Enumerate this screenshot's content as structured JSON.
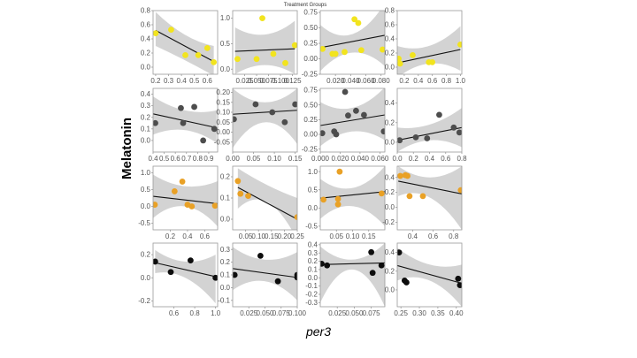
{
  "figure": {
    "title": "Treatment Groups",
    "ylabel": "Melatonin",
    "xlabel": "per3"
  },
  "colors": {
    "yellow": "#f2e41e",
    "dark_gray": "#4d4d4d",
    "orange": "#e9a126",
    "black": "#0d0d0d",
    "band": "#d3d3d3",
    "fit_line": "#111111"
  },
  "chart_data": [
    {
      "type": "scatter",
      "row": 1,
      "col": 1,
      "color": "yellow",
      "xlim": [
        0.18,
        0.68
      ],
      "ylim": [
        -0.1,
        0.8
      ],
      "xticks": [
        0.2,
        0.3,
        0.4,
        0.5,
        0.6
      ],
      "xtick_labels": [
        "0.2",
        "0.3",
        "0.4",
        "0.5",
        "0.6"
      ],
      "yticks": [
        0.0,
        0.2,
        0.4,
        0.6,
        0.8
      ],
      "ytick_labels": [
        "0.0",
        "0.2",
        "0.4",
        "0.6",
        "0.8"
      ],
      "x": [
        0.2,
        0.32,
        0.43,
        0.53,
        0.6,
        0.65
      ],
      "y": [
        0.48,
        0.53,
        0.17,
        0.17,
        0.27,
        0.07
      ],
      "fit": [
        [
          0.2,
          0.52
        ],
        [
          0.65,
          0.08
        ]
      ],
      "band_lower": [
        0.3,
        0.1,
        -0.12
      ],
      "band_upper": [
        0.78,
        0.46,
        0.3
      ]
    },
    {
      "type": "scatter",
      "row": 1,
      "col": 2,
      "color": "yellow",
      "xlim": [
        0.0,
        0.135
      ],
      "ylim": [
        -0.1,
        1.15
      ],
      "xticks": [
        0.025,
        0.05,
        0.075,
        0.1,
        0.125
      ],
      "xtick_labels": [
        "0.025",
        "0.050",
        "0.075",
        "0.100",
        "0.125"
      ],
      "yticks": [
        0.0,
        0.5,
        1.0
      ],
      "ytick_labels": [
        "0.0",
        "0.5",
        "1.0"
      ],
      "x": [
        0.01,
        0.05,
        0.062,
        0.085,
        0.11,
        0.13
      ],
      "y": [
        0.2,
        0.2,
        1.0,
        0.3,
        0.12,
        0.47
      ],
      "fit": [
        [
          0.005,
          0.35
        ],
        [
          0.13,
          0.4
        ]
      ],
      "band_lower": [
        -0.1,
        0.08,
        -0.1
      ],
      "band_upper": [
        0.82,
        0.68,
        0.95
      ]
    },
    {
      "type": "scatter",
      "row": 1,
      "col": 3,
      "color": "yellow",
      "xlim": [
        0.0,
        0.085
      ],
      "ylim": [
        -0.25,
        0.78
      ],
      "xticks": [
        0.02,
        0.04,
        0.06,
        0.08
      ],
      "xtick_labels": [
        "0.020",
        "0.040",
        "0.060",
        "0.080"
      ],
      "yticks": [
        -0.25,
        0.0,
        0.25,
        0.5,
        0.75
      ],
      "ytick_labels": [
        "-0.25",
        "0.00",
        "0.25",
        "0.50",
        "0.75"
      ],
      "x": [
        0.003,
        0.016,
        0.02,
        0.032,
        0.045,
        0.05,
        0.054,
        0.082
      ],
      "y": [
        0.16,
        0.08,
        0.08,
        0.11,
        0.64,
        0.58,
        0.14,
        0.15
      ],
      "fit": [
        [
          0.0,
          0.18
        ],
        [
          0.085,
          0.38
        ]
      ],
      "band_lower": [
        -0.2,
        0.1,
        -0.12
      ],
      "band_upper": [
        0.55,
        0.4,
        0.9
      ]
    },
    {
      "type": "scatter",
      "row": 1,
      "col": 4,
      "color": "yellow",
      "xlim": [
        0.1,
        1.02
      ],
      "ylim": [
        -0.1,
        0.8
      ],
      "xticks": [
        0.2,
        0.4,
        0.6,
        0.8,
        1.0
      ],
      "xtick_labels": [
        "0.2",
        "0.4",
        "0.6",
        "0.8",
        "1.0"
      ],
      "yticks": [
        0.0,
        0.2,
        0.4,
        0.6,
        0.8
      ],
      "ytick_labels": [
        "0.0",
        "0.2",
        "0.4",
        "0.6",
        "0.8"
      ],
      "x": [
        0.12,
        0.14,
        0.32,
        0.55,
        0.6,
        1.0
      ],
      "y": [
        0.12,
        0.05,
        0.17,
        0.07,
        0.07,
        0.32
      ],
      "fit": [
        [
          0.1,
          0.06
        ],
        [
          1.0,
          0.25
        ]
      ],
      "band_lower": [
        -0.15,
        0.05,
        -0.05
      ],
      "band_upper": [
        0.3,
        0.3,
        0.58
      ]
    },
    {
      "type": "scatter",
      "row": 2,
      "col": 1,
      "color": "dark_gray",
      "xlim": [
        0.4,
        0.98
      ],
      "ylim": [
        -0.1,
        0.45
      ],
      "xticks": [
        0.4,
        0.5,
        0.6,
        0.7,
        0.8,
        0.9
      ],
      "xtick_labels": [
        "0.4",
        "0.5",
        "0.6",
        "0.7",
        "0.8",
        "0.9"
      ],
      "yticks": [
        0.0,
        0.1,
        0.2,
        0.3,
        0.4
      ],
      "ytick_labels": [
        "0.0",
        "0.1",
        "0.2",
        "0.3",
        "0.4"
      ],
      "x": [
        0.42,
        0.65,
        0.67,
        0.77,
        0.85,
        0.95
      ],
      "y": [
        0.15,
        0.28,
        0.15,
        0.29,
        0.0,
        0.1
      ],
      "fit": [
        [
          0.4,
          0.23
        ],
        [
          0.97,
          0.11
        ]
      ],
      "band_lower": [
        0.05,
        0.09,
        -0.02
      ],
      "band_upper": [
        0.38,
        0.26,
        0.26
      ]
    },
    {
      "type": "scatter",
      "row": 2,
      "col": 2,
      "color": "dark_gray",
      "xlim": [
        0.0,
        0.155
      ],
      "ylim": [
        -0.1,
        0.22
      ],
      "xticks": [
        0.0,
        0.05,
        0.1,
        0.15
      ],
      "xtick_labels": [
        "0.00",
        "0.05",
        "0.10",
        "0.15"
      ],
      "yticks": [
        -0.05,
        0.0,
        0.05,
        0.1,
        0.15,
        0.2
      ],
      "ytick_labels": [
        "-0.05",
        "0.00",
        "0.05",
        "0.10",
        "0.15",
        "0.20"
      ],
      "x": [
        0.003,
        0.055,
        0.095,
        0.125,
        0.15
      ],
      "y": [
        0.065,
        0.14,
        0.1,
        0.05,
        0.14
      ],
      "fit": [
        [
          0.0,
          0.09
        ],
        [
          0.155,
          0.11
        ]
      ],
      "band_lower": [
        -0.08,
        0.05,
        -0.06
      ],
      "band_upper": [
        0.22,
        0.15,
        0.22
      ]
    },
    {
      "type": "scatter",
      "row": 2,
      "col": 3,
      "color": "dark_gray",
      "xlim": [
        0.0,
        0.065
      ],
      "ylim": [
        -0.3,
        0.78
      ],
      "xticks": [
        0.0,
        0.02,
        0.04,
        0.06
      ],
      "xtick_labels": [
        "0.000",
        "0.020",
        "0.040",
        "0.060"
      ],
      "yticks": [
        -0.25,
        0.0,
        0.25,
        0.5,
        0.75
      ],
      "ytick_labels": [
        "-0.25",
        "0.00",
        "0.25",
        "0.50",
        "0.75"
      ],
      "x": [
        0.002,
        0.014,
        0.016,
        0.025,
        0.028,
        0.036,
        0.044,
        0.064
      ],
      "y": [
        0.02,
        0.05,
        0.0,
        0.72,
        0.32,
        0.4,
        0.33,
        0.05
      ],
      "fit": [
        [
          0.0,
          0.15
        ],
        [
          0.065,
          0.33
        ]
      ],
      "band_lower": [
        -0.2,
        0.05,
        -0.1
      ],
      "band_upper": [
        0.55,
        0.45,
        0.8
      ]
    },
    {
      "type": "scatter",
      "row": 2,
      "col": 4,
      "color": "dark_gray",
      "xlim": [
        0.0,
        0.8
      ],
      "ylim": [
        -0.1,
        0.55
      ],
      "xticks": [
        0.0,
        0.2,
        0.4,
        0.6,
        0.8
      ],
      "xtick_labels": [
        "0.0",
        "0.2",
        "0.4",
        "0.6",
        "0.8"
      ],
      "yticks": [
        0.0,
        0.2,
        0.4
      ],
      "ytick_labels": [
        "0.0",
        "0.2",
        "0.4"
      ],
      "x": [
        0.03,
        0.23,
        0.37,
        0.52,
        0.7,
        0.77
      ],
      "y": [
        0.02,
        0.05,
        0.04,
        0.28,
        0.15,
        0.1
      ],
      "fit": [
        [
          0.0,
          0.02
        ],
        [
          0.8,
          0.15
        ]
      ],
      "band_lower": [
        -0.1,
        0.02,
        -0.05
      ],
      "band_upper": [
        0.15,
        0.18,
        0.35
      ]
    },
    {
      "type": "scatter",
      "row": 3,
      "col": 1,
      "color": "orange",
      "xlim": [
        0.0,
        0.75
      ],
      "ylim": [
        -0.7,
        1.2
      ],
      "xticks": [
        0.2,
        0.4,
        0.6
      ],
      "xtick_labels": [
        "0.2",
        "0.4",
        "0.6"
      ],
      "yticks": [
        -0.5,
        0.0,
        0.5,
        1.0
      ],
      "ytick_labels": [
        "-0.5",
        "0.0",
        "0.5",
        "1.0"
      ],
      "x": [
        0.02,
        0.25,
        0.34,
        0.4,
        0.45,
        0.72
      ],
      "y": [
        0.05,
        0.45,
        0.74,
        0.05,
        0.0,
        0.02
      ],
      "fit": [
        [
          0.0,
          0.3
        ],
        [
          0.75,
          0.08
        ]
      ],
      "band_lower": [
        -0.35,
        0.0,
        -0.6
      ],
      "band_upper": [
        0.95,
        0.6,
        0.75
      ]
    },
    {
      "type": "scatter",
      "row": 3,
      "col": 2,
      "color": "orange",
      "xlim": [
        0.0,
        0.25
      ],
      "ylim": [
        -0.05,
        0.25
      ],
      "xticks": [
        0.05,
        0.1,
        0.15,
        0.2,
        0.25
      ],
      "xtick_labels": [
        "0.05",
        "0.10",
        "0.15",
        "0.20",
        "0.25"
      ],
      "yticks": [
        0.0,
        0.1,
        0.2
      ],
      "ytick_labels": [
        "0.0",
        "0.1",
        "0.2"
      ],
      "x": [
        0.02,
        0.03,
        0.06,
        0.25
      ],
      "y": [
        0.18,
        0.12,
        0.11,
        0.01
      ],
      "fit": [
        [
          0.02,
          0.15
        ],
        [
          0.25,
          0.0
        ]
      ],
      "band_lower": [
        0.05,
        0.08,
        -0.1
      ],
      "band_upper": [
        0.24,
        0.16,
        0.1
      ]
    },
    {
      "type": "scatter",
      "row": 3,
      "col": 3,
      "color": "orange",
      "xlim": [
        0.0,
        0.2
      ],
      "ylim": [
        -0.6,
        1.15
      ],
      "xticks": [
        0.05,
        0.1,
        0.15
      ],
      "xtick_labels": [
        "0.05",
        "0.10",
        "0.15"
      ],
      "yticks": [
        -0.5,
        0.0,
        0.5,
        1.0
      ],
      "ytick_labels": [
        "-0.5",
        "0.0",
        "0.5",
        "1.0"
      ],
      "x": [
        0.01,
        0.055,
        0.055,
        0.06,
        0.19
      ],
      "y": [
        0.23,
        0.1,
        0.25,
        1.0,
        0.4
      ],
      "fit": [
        [
          0.0,
          0.27
        ],
        [
          0.2,
          0.45
        ]
      ],
      "band_lower": [
        -0.3,
        0.05,
        -0.5
      ],
      "band_upper": [
        0.8,
        0.55,
        1.15
      ]
    },
    {
      "type": "scatter",
      "row": 3,
      "col": 4,
      "color": "orange",
      "xlim": [
        0.25,
        0.88
      ],
      "ylim": [
        -0.3,
        0.55
      ],
      "xticks": [
        0.4,
        0.6,
        0.8
      ],
      "xtick_labels": [
        "0.4",
        "0.6",
        "0.8"
      ],
      "yticks": [
        -0.2,
        0.0,
        0.2,
        0.4
      ],
      "ytick_labels": [
        "-0.2",
        "0.0",
        "0.2",
        "0.4"
      ],
      "x": [
        0.28,
        0.33,
        0.35,
        0.37,
        0.5,
        0.87
      ],
      "y": [
        0.42,
        0.43,
        0.42,
        0.15,
        0.15,
        0.23
      ],
      "fit": [
        [
          0.26,
          0.35
        ],
        [
          0.88,
          0.18
        ]
      ],
      "band_lower": [
        0.15,
        0.13,
        -0.3
      ],
      "band_upper": [
        0.55,
        0.4,
        0.55
      ]
    },
    {
      "type": "scatter",
      "row": 4,
      "col": 1,
      "color": "black",
      "xlim": [
        0.4,
        1.02
      ],
      "ylim": [
        -0.25,
        0.3
      ],
      "xticks": [
        0.6,
        0.8,
        1.0
      ],
      "xtick_labels": [
        "0.6",
        "0.8",
        "1.0"
      ],
      "yticks": [
        -0.2,
        0.0,
        0.2
      ],
      "ytick_labels": [
        "-0.2",
        "0.0",
        "0.2"
      ],
      "x": [
        0.42,
        0.57,
        0.76,
        1.0
      ],
      "y": [
        0.14,
        0.05,
        0.15,
        0.0
      ],
      "fit": [
        [
          0.42,
          0.13
        ],
        [
          1.0,
          0.01
        ]
      ],
      "band_lower": [
        0.04,
        0.0,
        -0.22
      ],
      "band_upper": [
        0.24,
        0.14,
        0.2
      ]
    },
    {
      "type": "scatter",
      "row": 4,
      "col": 2,
      "color": "black",
      "xlim": [
        0.0,
        0.1
      ],
      "ylim": [
        -0.15,
        0.35
      ],
      "xticks": [
        0.025,
        0.05,
        0.075,
        0.1
      ],
      "xtick_labels": [
        "0.025",
        "0.050",
        "0.075",
        "0.100"
      ],
      "yticks": [
        -0.1,
        0.0,
        0.1,
        0.2,
        0.3
      ],
      "ytick_labels": [
        "-0.1",
        "0.0",
        "0.1",
        "0.2",
        "0.3"
      ],
      "x": [
        0.003,
        0.043,
        0.07,
        0.1,
        0.1
      ],
      "y": [
        0.1,
        0.25,
        0.05,
        0.1,
        0.08
      ],
      "fit": [
        [
          0.0,
          0.15
        ],
        [
          0.1,
          0.08
        ]
      ],
      "band_lower": [
        -0.02,
        0.05,
        -0.1
      ],
      "band_upper": [
        0.32,
        0.22,
        0.28
      ]
    },
    {
      "type": "scatter",
      "row": 4,
      "col": 3,
      "color": "black",
      "xlim": [
        0.0,
        0.095
      ],
      "ylim": [
        -0.35,
        0.42
      ],
      "xticks": [
        0.025,
        0.05,
        0.075
      ],
      "xtick_labels": [
        "0.025",
        "0.050",
        "0.075"
      ],
      "yticks": [
        -0.3,
        -0.2,
        -0.1,
        0.0,
        0.1,
        0.2,
        0.3,
        0.4
      ],
      "ytick_labels": [
        "-0.3",
        "-0.2",
        "-0.1",
        "0.0",
        "0.1",
        "0.2",
        "0.3",
        "0.4"
      ],
      "x": [
        0.002,
        0.01,
        0.075,
        0.077,
        0.09
      ],
      "y": [
        0.17,
        0.15,
        0.31,
        0.06,
        0.15
      ],
      "fit": [
        [
          0.0,
          0.16
        ],
        [
          0.095,
          0.18
        ]
      ],
      "band_lower": [
        -0.3,
        0.1,
        -0.35
      ],
      "band_upper": [
        0.38,
        0.22,
        0.42
      ]
    },
    {
      "type": "scatter",
      "row": 4,
      "col": 4,
      "color": "black",
      "xlim": [
        0.24,
        0.415
      ],
      "ylim": [
        -0.18,
        0.5
      ],
      "xticks": [
        0.25,
        0.3,
        0.35,
        0.4
      ],
      "xtick_labels": [
        "0.25",
        "0.30",
        "0.35",
        "0.40"
      ],
      "yticks": [
        0.0,
        0.2,
        0.4
      ],
      "ytick_labels": [
        "0.0",
        "0.2",
        "0.4"
      ],
      "x": [
        0.245,
        0.26,
        0.265,
        0.405,
        0.41
      ],
      "y": [
        0.4,
        0.1,
        0.08,
        0.12,
        0.05
      ],
      "fit": [
        [
          0.24,
          0.26
        ],
        [
          0.415,
          0.07
        ]
      ],
      "band_lower": [
        0.1,
        0.1,
        -0.18
      ],
      "band_upper": [
        0.45,
        0.27,
        0.27
      ]
    }
  ]
}
